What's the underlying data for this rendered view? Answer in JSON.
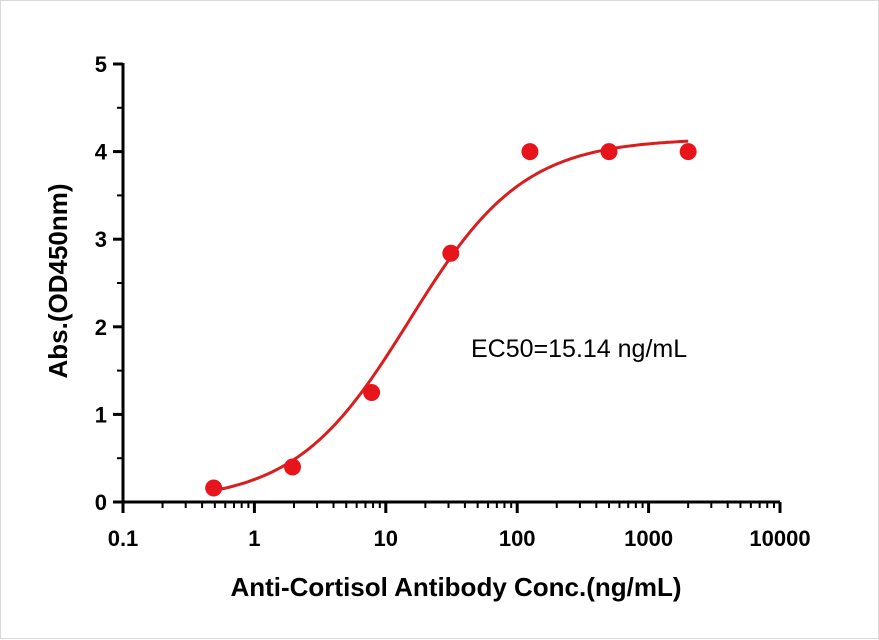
{
  "chart_data": {
    "type": "scatter",
    "x_scale": "log",
    "xlabel": "Anti-Cortisol Antibody Conc.(ng/mL)",
    "ylabel": "Abs.(OD450nm)",
    "xlim": [
      0.1,
      10000
    ],
    "ylim": [
      0,
      5
    ],
    "x_ticks": [
      "0.1",
      "1",
      "10",
      "100",
      "1000",
      "10000"
    ],
    "y_ticks": [
      "0",
      "1",
      "2",
      "3",
      "4",
      "5"
    ],
    "grid": false,
    "point_color": "#e8141c",
    "curve_color": "#d81e1e",
    "points": [
      {
        "x": 0.49,
        "y": 0.16
      },
      {
        "x": 1.95,
        "y": 0.4
      },
      {
        "x": 7.8,
        "y": 1.25
      },
      {
        "x": 31.25,
        "y": 2.84
      },
      {
        "x": 125,
        "y": 4.0
      },
      {
        "x": 500,
        "y": 4.0
      },
      {
        "x": 2000,
        "y": 4.0
      }
    ],
    "fit": {
      "model": "4PL",
      "bottom": 0.0,
      "top": 4.15,
      "ec50": 15.14,
      "hill": 1.0,
      "x_range": [
        0.5,
        2000
      ]
    },
    "annotation": "EC50=15.14 ng/mL"
  }
}
